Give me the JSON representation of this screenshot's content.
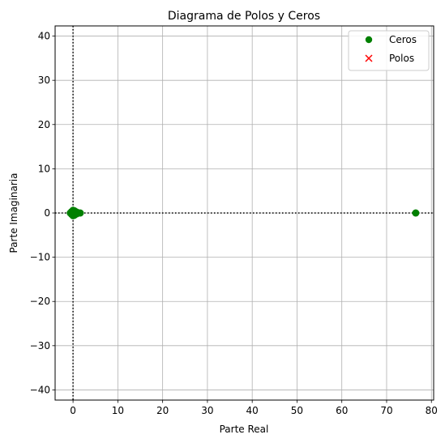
{
  "chart_data": {
    "type": "scatter",
    "title": "Diagrama de Polos y Ceros",
    "xlabel": "Parte Real",
    "ylabel": "Parte Imaginaria",
    "xlim": [
      -4.0,
      80.5
    ],
    "ylim": [
      -42.3,
      42.3
    ],
    "xticks": [
      0,
      10,
      20,
      30,
      40,
      50,
      60,
      70,
      80
    ],
    "yticks": [
      -40,
      -30,
      -20,
      -10,
      0,
      10,
      20,
      30,
      40
    ],
    "xtick_labels": [
      "0",
      "10",
      "20",
      "30",
      "40",
      "50",
      "60",
      "70",
      "80"
    ],
    "ytick_labels": [
      "−40",
      "−30",
      "−20",
      "−10",
      "0",
      "10",
      "20",
      "30",
      "40"
    ],
    "grid": true,
    "legend_position": "top-right",
    "reference_lines": {
      "x": 0,
      "y": 0,
      "style": "dotted",
      "color": "#000000"
    },
    "series": [
      {
        "name": "Ceros",
        "marker": "circle",
        "color": "#008000",
        "points": [
          {
            "x": 76.5,
            "y": 0.0
          },
          {
            "x": 0.0,
            "y": 0.0
          },
          {
            "x": -0.3,
            "y": 0.3
          },
          {
            "x": -0.3,
            "y": -0.3
          },
          {
            "x": 0.3,
            "y": 0.5
          },
          {
            "x": 0.3,
            "y": -0.5
          },
          {
            "x": 0.8,
            "y": 0.2
          },
          {
            "x": 0.8,
            "y": -0.2
          },
          {
            "x": -0.6,
            "y": 0.0
          },
          {
            "x": 0.5,
            "y": 0.0
          },
          {
            "x": 1.2,
            "y": 0.0
          },
          {
            "x": 1.6,
            "y": 0.0
          },
          {
            "x": 0.0,
            "y": 0.6
          },
          {
            "x": 0.0,
            "y": -0.6
          }
        ]
      },
      {
        "name": "Polos",
        "marker": "x",
        "color": "#ff0000",
        "points": []
      }
    ]
  }
}
